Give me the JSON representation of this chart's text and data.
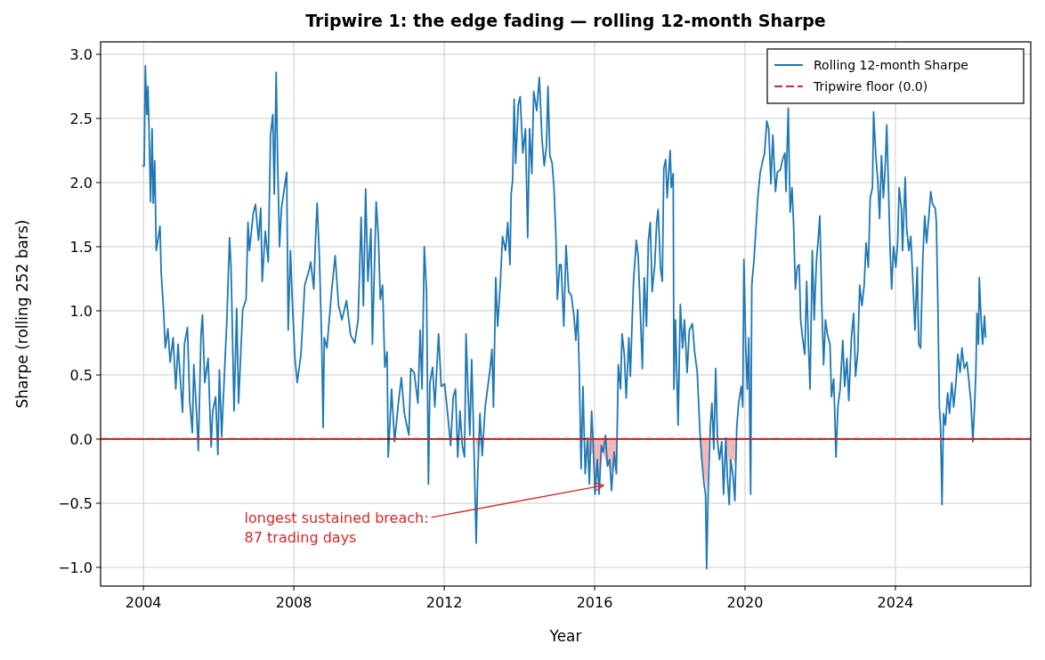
{
  "chart_data": {
    "type": "line",
    "title": "Tripwire 1: the edge fading — rolling 12-month Sharpe",
    "xlabel": "Year",
    "ylabel": "Sharpe (rolling 252 bars)",
    "xlim": [
      2002.86,
      2027.6
    ],
    "ylim": [
      -1.146,
      3.097
    ],
    "xticks": [
      2004,
      2008,
      2012,
      2016,
      2020,
      2024
    ],
    "yticks": [
      {
        "value": -1,
        "label": "−1.0"
      },
      {
        "value": -0.5,
        "label": "−0.5"
      },
      {
        "value": 0,
        "label": "0.0"
      },
      {
        "value": 0.5,
        "label": "0.5"
      },
      {
        "value": 1,
        "label": "1.0"
      },
      {
        "value": 1.5,
        "label": "1.5"
      },
      {
        "value": 2,
        "label": "2.0"
      },
      {
        "value": 2.5,
        "label": "2.5"
      },
      {
        "value": 3,
        "label": "3.0"
      }
    ],
    "grid": true,
    "legend": "top right",
    "line_style": "solid",
    "marker": "none",
    "series": [
      {
        "name": "Rolling 12-month Sharpe",
        "color": "#1f77b4",
        "x": [
          2003.97,
          2004.02,
          2004.05,
          2004.09,
          2004.12,
          2004.15,
          2004.19,
          2004.23,
          2004.26,
          2004.3,
          2004.34,
          2004.44,
          2004.47,
          2004.54,
          2004.58,
          2004.65,
          2004.71,
          2004.79,
          2004.86,
          2004.92,
          2005.04,
          2005.09,
          2005.17,
          2005.23,
          2005.3,
          2005.34,
          2005.41,
          2005.46,
          2005.53,
          2005.57,
          2005.63,
          2005.72,
          2005.8,
          2005.84,
          2005.92,
          2005.98,
          2006.02,
          2006.08,
          2006.15,
          2006.22,
          2006.29,
          2006.33,
          2006.41,
          2006.48,
          2006.53,
          2006.64,
          2006.73,
          2006.78,
          2006.82,
          2006.92,
          2006.98,
          2007.06,
          2007.12,
          2007.16,
          2007.24,
          2007.32,
          2007.38,
          2007.44,
          2007.48,
          2007.53,
          2007.57,
          2007.62,
          2007.67,
          2007.75,
          2007.81,
          2007.85,
          2007.91,
          2007.96,
          2008.03,
          2008.09,
          2008.19,
          2008.29,
          2008.4,
          2008.45,
          2008.53,
          2008.58,
          2008.62,
          2008.68,
          2008.74,
          2008.78,
          2008.81,
          2008.88,
          2009.01,
          2009.1,
          2009.19,
          2009.28,
          2009.4,
          2009.51,
          2009.62,
          2009.71,
          2009.79,
          2009.85,
          2009.91,
          2009.97,
          2010.05,
          2010.09,
          2010.19,
          2010.25,
          2010.3,
          2010.36,
          2010.42,
          2010.48,
          2010.51,
          2010.6,
          2010.68,
          2010.78,
          2010.86,
          2010.94,
          2011.06,
          2011.11,
          2011.2,
          2011.3,
          2011.36,
          2011.41,
          2011.47,
          2011.53,
          2011.58,
          2011.62,
          2011.69,
          2011.75,
          2011.85,
          2011.92,
          2012.01,
          2012.09,
          2012.17,
          2012.24,
          2012.3,
          2012.36,
          2012.42,
          2012.48,
          2012.54,
          2012.58,
          2012.63,
          2012.68,
          2012.73,
          2012.79,
          2012.85,
          2012.89,
          2012.95,
          2013.01,
          2013.09,
          2013.16,
          2013.22,
          2013.27,
          2013.31,
          2013.37,
          2013.42,
          2013.49,
          2013.55,
          2013.63,
          2013.69,
          2013.75,
          2013.78,
          2013.82,
          2013.86,
          2013.9,
          2013.97,
          2014.02,
          2014.09,
          2014.16,
          2014.22,
          2014.27,
          2014.33,
          2014.38,
          2014.46,
          2014.53,
          2014.6,
          2014.66,
          2014.72,
          2014.76,
          2014.81,
          2014.87,
          2014.92,
          2014.97,
          2015.01,
          2015.07,
          2015.11,
          2015.18,
          2015.24,
          2015.31,
          2015.38,
          2015.45,
          2015.5,
          2015.55,
          2015.59,
          2015.64,
          2015.69,
          2015.75,
          2015.81,
          2015.86,
          2015.92,
          2015.96,
          2016.01,
          2016.07,
          2016.12,
          2016.18,
          2016.23,
          2016.29,
          2016.34,
          2016.4,
          2016.45,
          2016.52,
          2016.58,
          2016.63,
          2016.69,
          2016.73,
          2016.79,
          2016.84,
          2016.91,
          2016.95,
          2017.03,
          2017.06,
          2017.11,
          2017.16,
          2017.21,
          2017.27,
          2017.32,
          2017.38,
          2017.43,
          2017.48,
          2017.53,
          2017.6,
          2017.65,
          2017.69,
          2017.75,
          2017.8,
          2017.84,
          2017.89,
          2017.93,
          2017.97,
          2018.01,
          2018.04,
          2018.09,
          2018.11,
          2018.15,
          2018.22,
          2018.28,
          2018.34,
          2018.39,
          2018.46,
          2018.52,
          2018.6,
          2018.66,
          2018.73,
          2018.8,
          2018.85,
          2018.91,
          2018.95,
          2018.98,
          2019.02,
          2019.08,
          2019.12,
          2019.17,
          2019.22,
          2019.27,
          2019.32,
          2019.38,
          2019.43,
          2019.49,
          2019.53,
          2019.58,
          2019.62,
          2019.68,
          2019.73,
          2019.78,
          2019.83,
          2019.9,
          2019.94,
          2019.97,
          2020.02,
          2020.06,
          2020.1,
          2020.15,
          2020.18,
          2020.24,
          2020.29,
          2020.34,
          2020.4,
          2020.47,
          2020.52,
          2020.58,
          2020.63,
          2020.69,
          2020.74,
          2020.81,
          2020.86,
          2020.94,
          2021.0,
          2021.06,
          2021.09,
          2021.15,
          2021.2,
          2021.25,
          2021.29,
          2021.34,
          2021.39,
          2021.44,
          2021.48,
          2021.53,
          2021.59,
          2021.64,
          2021.69,
          2021.73,
          2021.79,
          2021.84,
          2021.9,
          2021.94,
          2021.99,
          2022.04,
          2022.09,
          2022.14,
          2022.19,
          2022.26,
          2022.3,
          2022.36,
          2022.42,
          2022.47,
          2022.53,
          2022.6,
          2022.65,
          2022.71,
          2022.76,
          2022.83,
          2022.89,
          2022.94,
          2023.0,
          2023.05,
          2023.11,
          2023.17,
          2023.22,
          2023.28,
          2023.33,
          2023.39,
          2023.42,
          2023.48,
          2023.53,
          2023.58,
          2023.63,
          2023.68,
          2023.73,
          2023.77,
          2023.81,
          2023.86,
          2023.9,
          2023.95,
          2024.01,
          2024.06,
          2024.1,
          2024.16,
          2024.19,
          2024.26,
          2024.3,
          2024.36,
          2024.41,
          2024.47,
          2024.52,
          2024.58,
          2024.62,
          2024.67,
          2024.73,
          2024.78,
          2024.83,
          2024.89,
          2024.94,
          2024.99,
          2025.06,
          2025.09,
          2025.13,
          2025.17,
          2025.2,
          2025.24,
          2025.28,
          2025.33,
          2025.39,
          2025.44,
          2025.5,
          2025.55,
          2025.61,
          2025.66,
          2025.72,
          2025.77,
          2025.83,
          2025.9,
          2025.95,
          2026.01,
          2026.06,
          2026.1,
          2026.14,
          2026.17,
          2026.21,
          2026.23,
          2026.28,
          2026.32,
          2026.37,
          2026.4
        ],
        "values": [
          2.13,
          2.13,
          2.91,
          2.53,
          2.75,
          2.4,
          1.85,
          2.42,
          1.84,
          2.17,
          1.47,
          1.66,
          1.31,
          0.98,
          0.71,
          0.86,
          0.6,
          0.79,
          0.39,
          0.74,
          0.21,
          0.74,
          0.87,
          0.3,
          0.05,
          0.58,
          0.22,
          -0.09,
          0.81,
          0.97,
          0.44,
          0.63,
          -0.06,
          0.21,
          0.33,
          -0.12,
          0.54,
          0.02,
          0.48,
          0.94,
          1.57,
          1.34,
          0.22,
          1.02,
          0.28,
          1.01,
          1.09,
          1.69,
          1.47,
          1.76,
          1.83,
          1.55,
          1.8,
          1.23,
          1.62,
          1.38,
          2.37,
          2.53,
          1.91,
          2.86,
          2.15,
          1.5,
          1.8,
          1.96,
          2.08,
          0.85,
          1.47,
          1.07,
          0.63,
          0.44,
          0.66,
          1.2,
          1.31,
          1.38,
          1.17,
          1.58,
          1.84,
          1.42,
          0.77,
          0.09,
          0.79,
          0.71,
          1.17,
          1.43,
          1.04,
          0.93,
          1.08,
          0.81,
          0.75,
          0.93,
          1.73,
          1.04,
          1.95,
          1.23,
          1.64,
          0.74,
          1.85,
          1.57,
          1.09,
          1.2,
          0.56,
          0.68,
          -0.14,
          0.39,
          -0.02,
          0.28,
          0.48,
          0.2,
          0.03,
          0.55,
          0.52,
          0.28,
          0.85,
          0.39,
          1.5,
          1.15,
          -0.35,
          0.44,
          0.56,
          0.25,
          0.82,
          0.41,
          0.43,
          0.2,
          -0.05,
          0.33,
          0.39,
          -0.14,
          0.22,
          -0.05,
          -0.14,
          0.82,
          0.39,
          0.03,
          0.62,
          -0.05,
          -0.81,
          -0.29,
          0.2,
          -0.13,
          0.25,
          0.41,
          0.55,
          0.7,
          0.25,
          1.26,
          0.88,
          1.2,
          1.58,
          1.47,
          1.69,
          1.36,
          1.91,
          2.02,
          2.65,
          2.15,
          2.61,
          2.67,
          2.23,
          2.42,
          1.57,
          2.42,
          2.07,
          2.71,
          2.56,
          2.82,
          2.34,
          2.13,
          2.29,
          2.75,
          2.21,
          2.15,
          1.96,
          1.58,
          1.09,
          1.36,
          1.36,
          0.88,
          1.51,
          1.15,
          1.12,
          0.96,
          0.77,
          1.01,
          0.55,
          -0.23,
          0.41,
          -0.27,
          0.01,
          -0.35,
          0.22,
          -0.02,
          -0.43,
          -0.16,
          -0.43,
          -0.05,
          -0.1,
          0.03,
          -0.21,
          -0.16,
          -0.4,
          -0.1,
          -0.27,
          0.58,
          0.39,
          0.82,
          0.66,
          0.32,
          0.79,
          0.49,
          1.2,
          1.34,
          1.55,
          1.42,
          1.04,
          0.55,
          1.26,
          0.88,
          1.55,
          1.69,
          1.15,
          1.36,
          1.69,
          1.79,
          1.34,
          1.23,
          2.11,
          2.18,
          1.88,
          2.07,
          2.25,
          1.96,
          2.07,
          0.39,
          0.93,
          0.11,
          1.05,
          0.71,
          0.93,
          0.52,
          0.85,
          0.9,
          0.68,
          0.52,
          0.06,
          -0.16,
          -0.35,
          -0.43,
          -1.01,
          -0.4,
          0.11,
          0.28,
          -0.08,
          0.55,
          -0.02,
          -0.16,
          -0.02,
          -0.43,
          0.01,
          -0.29,
          -0.51,
          -0.16,
          -0.29,
          -0.48,
          0.09,
          0.28,
          0.41,
          0.25,
          1.4,
          0.71,
          0.39,
          0.79,
          -0.43,
          1.2,
          1.4,
          1.64,
          1.88,
          2.07,
          2.17,
          2.23,
          2.48,
          2.42,
          1.99,
          2.37,
          1.93,
          2.08,
          2.1,
          2.18,
          2.23,
          1.93,
          2.58,
          1.77,
          1.96,
          1.69,
          1.17,
          1.34,
          1.36,
          0.93,
          0.79,
          0.66,
          1.23,
          0.71,
          0.39,
          1.47,
          0.93,
          1.39,
          1.53,
          1.74,
          1.07,
          0.58,
          0.93,
          0.82,
          0.74,
          0.33,
          0.47,
          -0.14,
          0.25,
          0.39,
          0.77,
          0.41,
          0.63,
          0.3,
          0.79,
          0.98,
          0.49,
          0.68,
          1.2,
          1.04,
          1.2,
          1.53,
          1.34,
          1.88,
          1.96,
          2.55,
          2.21,
          2.02,
          1.72,
          2.21,
          1.88,
          2.13,
          2.45,
          2.02,
          1.47,
          1.17,
          1.5,
          1.34,
          1.53,
          1.96,
          1.8,
          1.47,
          2.04,
          1.64,
          1.47,
          1.58,
          1.2,
          0.85,
          1.34,
          0.74,
          0.71,
          1.42,
          1.74,
          1.53,
          1.74,
          1.93,
          1.83,
          1.8,
          1.69,
          1.04,
          0.25,
          0.11,
          -0.51,
          0.2,
          0.11,
          0.36,
          0.2,
          0.44,
          0.25,
          0.44,
          0.66,
          0.52,
          0.71,
          0.55,
          0.6,
          0.47,
          0.28,
          -0.02,
          0.22,
          0.52,
          0.98,
          0.74,
          1.26,
          0.93,
          0.74,
          0.96,
          0.79
        ]
      },
      {
        "color": "#f4b6b6",
        "type": "area",
        "x": [
          2012.83,
          2012.88,
          2012.95,
          2013.0,
          2013.01,
          2015.78,
          2015.86,
          2015.96,
          2016.01,
          2016.12,
          2016.2,
          2016.34,
          2016.45,
          2016.58,
          2016.62,
          2016.63,
          2018.8,
          2018.9,
          2018.98,
          2019.05,
          2019.06,
          2019.5,
          2019.58,
          2019.68,
          2019.73,
          2019.78
        ],
        "values": [
          0,
          -0.1,
          -0.05,
          0,
          null,
          0,
          -0.15,
          -0.1,
          -0.3,
          -0.3,
          -0.1,
          -0.2,
          -0.25,
          -0.2,
          0,
          null,
          0,
          -0.25,
          -0.4,
          0,
          null,
          0,
          -0.2,
          -0.15,
          -0.2,
          0
        ]
      }
    ],
    "ref_lines": [
      {
        "axis": "y",
        "value": 0,
        "color": "#000000",
        "line_style": "solid"
      },
      {
        "axis": "y",
        "value": 0,
        "label": "Tripwire floor (0.0)",
        "color": "#d62728",
        "line_style": "dashed"
      }
    ],
    "annotations": [
      {
        "text": "longest sustained breach:\n87 trading days",
        "x": 2016.25,
        "y": -0.36
      }
    ]
  }
}
